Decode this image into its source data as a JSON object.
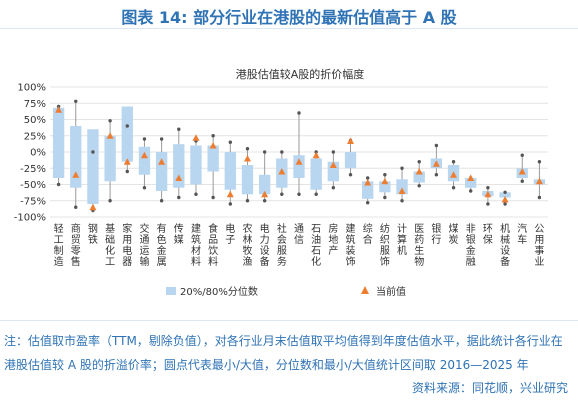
{
  "figure_title": "图表 14: 部分行业在港股的最新估值高于 A 股",
  "chart_data": {
    "type": "box",
    "title": "港股估值较A股的折价幅度",
    "xlabel": "",
    "ylabel": "",
    "ylim": [
      -100,
      100
    ],
    "y_ticks": [
      "100%",
      "75%",
      "50%",
      "25%",
      "0%",
      "-25%",
      "-50%",
      "-75%",
      "-100%"
    ],
    "legend": {
      "box": "20%/80%分位数",
      "current": "当前值",
      "placement": "bottom"
    },
    "colors": {
      "box": "#b8d6f0",
      "whisker": "#9a9a9a",
      "dot": "#555555",
      "current": "#ed7d31",
      "title": "#2f73b5"
    },
    "categories": [
      "轻工制造",
      "商贸零售",
      "钢铁",
      "基础化工",
      "家用电器",
      "交通运输",
      "有色金属",
      "传媒",
      "建筑材料",
      "食品饮料",
      "电子",
      "农林牧渔",
      "电力设备",
      "社会服务",
      "通信",
      "石油石化",
      "房地产",
      "建筑装饰",
      "综合",
      "纺织服饰",
      "计算机",
      "医药生物",
      "银行",
      "煤炭",
      "非银金融",
      "环保",
      "机械设备",
      "汽车",
      "公用事业"
    ],
    "series": [
      {
        "name": "max",
        "values": [
          70,
          78,
          0,
          48,
          40,
          20,
          20,
          35,
          17,
          25,
          15,
          5,
          0,
          0,
          60,
          0,
          0,
          18,
          -40,
          -35,
          -25,
          -15,
          10,
          -15,
          -40,
          -55,
          -62,
          -5,
          -15
        ]
      },
      {
        "name": "p80",
        "values": [
          68,
          40,
          35,
          25,
          70,
          8,
          0,
          12,
          10,
          10,
          0,
          -20,
          -35,
          -10,
          -5,
          -10,
          -15,
          0,
          -45,
          -45,
          -42,
          -30,
          -10,
          -20,
          -40,
          -60,
          -62,
          -25,
          -42
        ]
      },
      {
        "name": "p20",
        "values": [
          -40,
          -55,
          -80,
          -45,
          -15,
          -35,
          -60,
          -55,
          -50,
          -30,
          -58,
          -65,
          -65,
          -55,
          -40,
          -58,
          -45,
          -25,
          -72,
          -62,
          -65,
          -47,
          -25,
          -45,
          -55,
          -68,
          -70,
          -40,
          -50
        ]
      },
      {
        "name": "min",
        "values": [
          -50,
          -85,
          -90,
          -75,
          -30,
          -55,
          -75,
          -70,
          -65,
          -70,
          -80,
          -75,
          -75,
          -65,
          -65,
          -65,
          -55,
          -35,
          -78,
          -70,
          -75,
          -52,
          -35,
          -55,
          -60,
          -80,
          -80,
          -45,
          -70
        ]
      },
      {
        "name": "current",
        "values": [
          65,
          -35,
          -85,
          25,
          -15,
          -5,
          -15,
          -40,
          22,
          10,
          -65,
          -10,
          -65,
          -30,
          -15,
          -5,
          -20,
          17,
          -47,
          -45,
          -60,
          -30,
          -18,
          -35,
          -40,
          -65,
          -73,
          -30,
          -45
        ]
      }
    ]
  },
  "notes": [
    "注：估值取市盈率（TTM，剔除负值），对各行业月末估值取平均值得到年度估值水平，据此统计各行业在",
    "港股估值较 A 股的折溢价率；圆点代表最小/大值，分位数和最小/大值统计区间取 2016—2025 年"
  ],
  "source": "资料来源：同花顺，兴业研究"
}
